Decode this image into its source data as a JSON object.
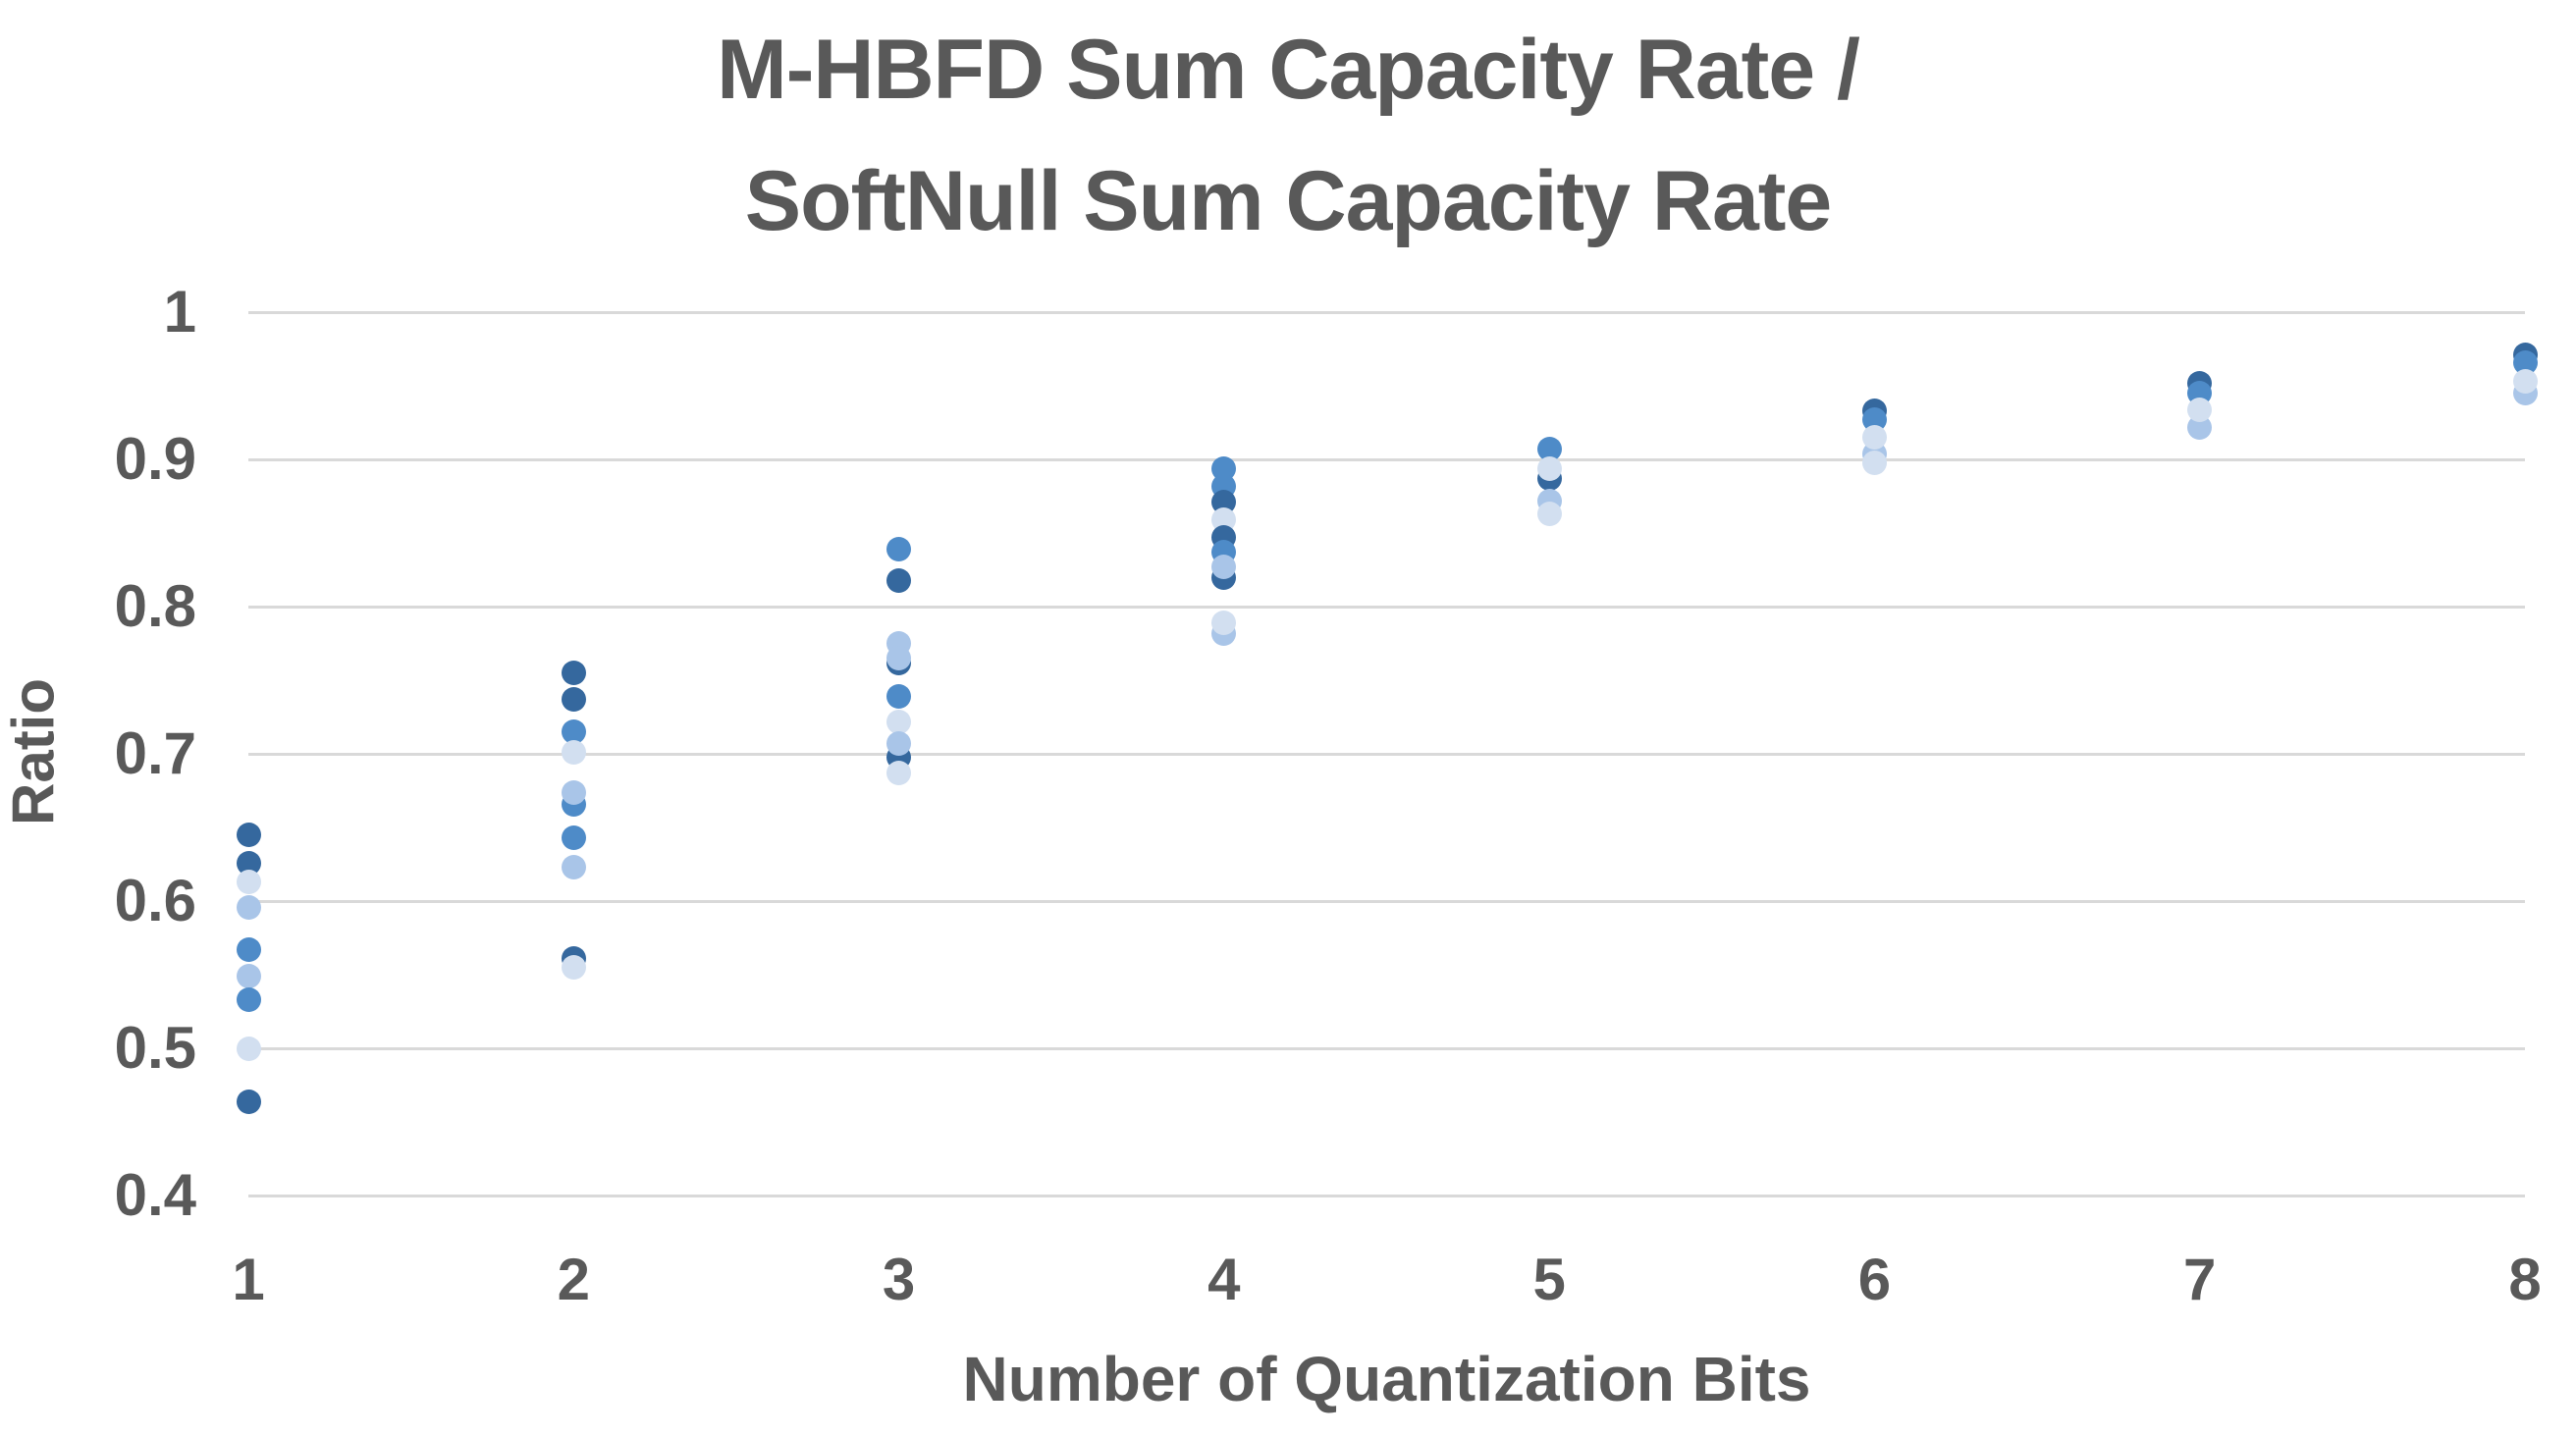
{
  "title": {
    "line1": "M-HBFD Sum Capacity Rate /",
    "line2": "SoftNull Sum Capacity Rate"
  },
  "chart_data": {
    "type": "scatter",
    "title": "M-HBFD Sum Capacity Rate / SoftNull Sum Capacity Rate",
    "xlabel": "Number of Quantization Bits",
    "ylabel": "Ratio",
    "xlim": [
      1,
      8
    ],
    "ylim": [
      0.4,
      1.0
    ],
    "grid": true,
    "legend": "none",
    "x_ticks": [
      {
        "v": 1,
        "label": "1"
      },
      {
        "v": 2,
        "label": "2"
      },
      {
        "v": 3,
        "label": "3"
      },
      {
        "v": 4,
        "label": "4"
      },
      {
        "v": 5,
        "label": "5"
      },
      {
        "v": 6,
        "label": "6"
      },
      {
        "v": 7,
        "label": "7"
      },
      {
        "v": 8,
        "label": "8"
      }
    ],
    "y_ticks": [
      {
        "v": 1.0,
        "label": "1"
      },
      {
        "v": 0.9,
        "label": "0.9"
      },
      {
        "v": 0.8,
        "label": "0.8"
      },
      {
        "v": 0.7,
        "label": "0.7"
      },
      {
        "v": 0.6,
        "label": "0.6"
      },
      {
        "v": 0.5,
        "label": "0.5"
      },
      {
        "v": 0.4,
        "label": "0.4"
      }
    ],
    "palette": {
      "dark": "#35689E",
      "medium": "#4E8BC8",
      "light": "#A9C5E8",
      "xlight": "#D2DFF0"
    },
    "grid_color": "#d9d9d9",
    "text_color": "#595959",
    "points": [
      {
        "x": 1,
        "y": 0.645,
        "shade": "dark"
      },
      {
        "x": 1,
        "y": 0.626,
        "shade": "dark"
      },
      {
        "x": 1,
        "y": 0.613,
        "shade": "xlight"
      },
      {
        "x": 1,
        "y": 0.596,
        "shade": "light"
      },
      {
        "x": 1,
        "y": 0.567,
        "shade": "medium"
      },
      {
        "x": 1,
        "y": 0.549,
        "shade": "light"
      },
      {
        "x": 1,
        "y": 0.533,
        "shade": "medium"
      },
      {
        "x": 1,
        "y": 0.5,
        "shade": "xlight"
      },
      {
        "x": 1,
        "y": 0.464,
        "shade": "dark"
      },
      {
        "x": 2,
        "y": 0.755,
        "shade": "dark"
      },
      {
        "x": 2,
        "y": 0.737,
        "shade": "dark"
      },
      {
        "x": 2,
        "y": 0.715,
        "shade": "medium"
      },
      {
        "x": 2,
        "y": 0.701,
        "shade": "xlight"
      },
      {
        "x": 2,
        "y": 0.666,
        "shade": "medium"
      },
      {
        "x": 2,
        "y": 0.674,
        "shade": "light"
      },
      {
        "x": 2,
        "y": 0.643,
        "shade": "medium"
      },
      {
        "x": 2,
        "y": 0.623,
        "shade": "light"
      },
      {
        "x": 2,
        "y": 0.561,
        "shade": "dark"
      },
      {
        "x": 2,
        "y": 0.555,
        "shade": "xlight"
      },
      {
        "x": 3,
        "y": 0.839,
        "shade": "medium"
      },
      {
        "x": 3,
        "y": 0.818,
        "shade": "dark"
      },
      {
        "x": 3,
        "y": 0.762,
        "shade": "dark"
      },
      {
        "x": 3,
        "y": 0.775,
        "shade": "light"
      },
      {
        "x": 3,
        "y": 0.765,
        "shade": "light"
      },
      {
        "x": 3,
        "y": 0.739,
        "shade": "medium"
      },
      {
        "x": 3,
        "y": 0.698,
        "shade": "dark"
      },
      {
        "x": 3,
        "y": 0.722,
        "shade": "xlight"
      },
      {
        "x": 3,
        "y": 0.707,
        "shade": "light"
      },
      {
        "x": 3,
        "y": 0.687,
        "shade": "xlight"
      },
      {
        "x": 4,
        "y": 0.894,
        "shade": "medium"
      },
      {
        "x": 4,
        "y": 0.882,
        "shade": "medium"
      },
      {
        "x": 4,
        "y": 0.871,
        "shade": "dark"
      },
      {
        "x": 4,
        "y": 0.859,
        "shade": "xlight"
      },
      {
        "x": 4,
        "y": 0.847,
        "shade": "dark"
      },
      {
        "x": 4,
        "y": 0.837,
        "shade": "medium"
      },
      {
        "x": 4,
        "y": 0.82,
        "shade": "dark"
      },
      {
        "x": 4,
        "y": 0.827,
        "shade": "light"
      },
      {
        "x": 4,
        "y": 0.782,
        "shade": "light"
      },
      {
        "x": 4,
        "y": 0.789,
        "shade": "xlight"
      },
      {
        "x": 5,
        "y": 0.907,
        "shade": "medium"
      },
      {
        "x": 5,
        "y": 0.887,
        "shade": "dark"
      },
      {
        "x": 5,
        "y": 0.894,
        "shade": "xlight"
      },
      {
        "x": 5,
        "y": 0.872,
        "shade": "light"
      },
      {
        "x": 5,
        "y": 0.863,
        "shade": "xlight"
      },
      {
        "x": 6,
        "y": 0.933,
        "shade": "dark"
      },
      {
        "x": 6,
        "y": 0.927,
        "shade": "medium"
      },
      {
        "x": 6,
        "y": 0.904,
        "shade": "light"
      },
      {
        "x": 6,
        "y": 0.915,
        "shade": "xlight"
      },
      {
        "x": 6,
        "y": 0.898,
        "shade": "xlight"
      },
      {
        "x": 7,
        "y": 0.952,
        "shade": "dark"
      },
      {
        "x": 7,
        "y": 0.945,
        "shade": "medium"
      },
      {
        "x": 7,
        "y": 0.922,
        "shade": "light"
      },
      {
        "x": 7,
        "y": 0.934,
        "shade": "xlight"
      },
      {
        "x": 8,
        "y": 0.971,
        "shade": "dark"
      },
      {
        "x": 8,
        "y": 0.966,
        "shade": "medium"
      },
      {
        "x": 8,
        "y": 0.945,
        "shade": "light"
      },
      {
        "x": 8,
        "y": 0.953,
        "shade": "xlight"
      }
    ]
  }
}
